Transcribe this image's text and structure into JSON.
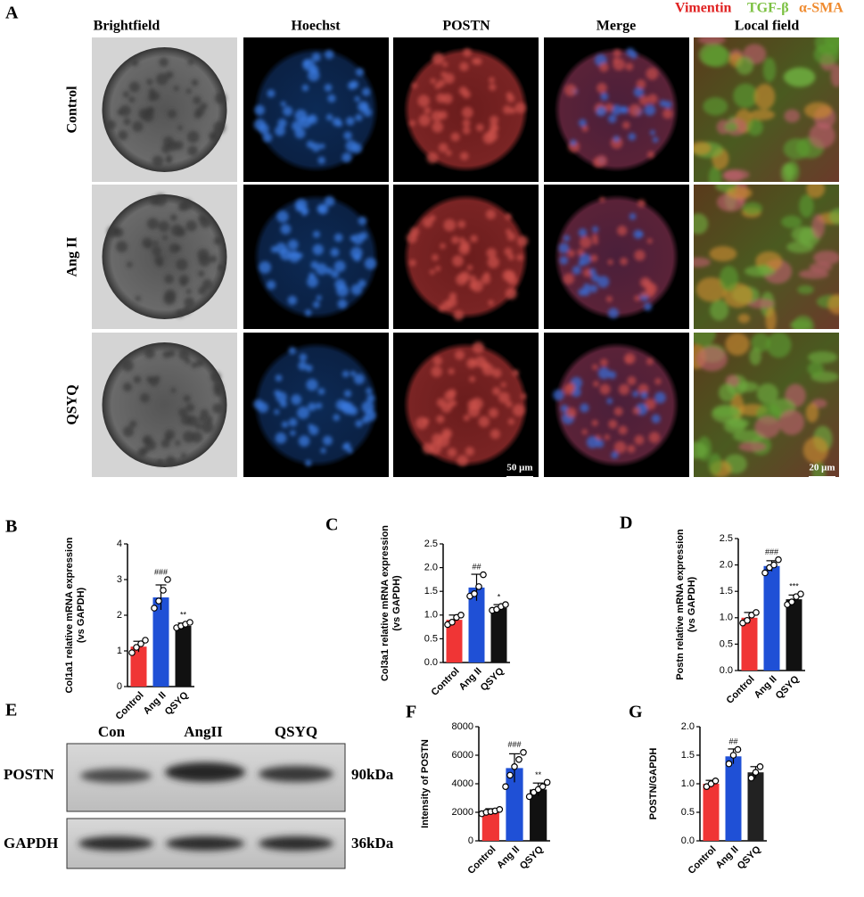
{
  "panel_labels": [
    "A",
    "B",
    "C",
    "D",
    "E",
    "F",
    "G"
  ],
  "panel_a": {
    "columns": [
      "Brightfield",
      "Hoechst",
      "POSTN",
      "Merge",
      "Local field"
    ],
    "rows": [
      "Control",
      "Ang II",
      "QSYQ"
    ],
    "legend": [
      {
        "text": "Vimentin",
        "color": "#e02222"
      },
      {
        "text": "TGF-β",
        "color": "#7cc142"
      },
      {
        "text": "α-SMA",
        "color": "#ef8a2e"
      }
    ],
    "scale_bars": [
      "50 μm",
      "20 μm"
    ]
  },
  "panel_e": {
    "lanes": [
      "Con",
      "AngII",
      "QSYQ"
    ],
    "rows": [
      "POSTN",
      "GAPDH"
    ],
    "sizes": [
      "90kDa",
      "36kDa"
    ]
  },
  "chart_data": [
    {
      "type": "bar",
      "ylabel": [
        "Col1a1 relative mRNA expression",
        "(vs GAPDH)"
      ],
      "categories": [
        "Control",
        "Ang II",
        "QSYQ"
      ],
      "colors": [
        "#f03535",
        "#1f50d6",
        "#111111"
      ],
      "values": [
        1.12,
        2.5,
        1.7
      ],
      "errors": [
        0.15,
        0.35,
        0.08
      ],
      "points": [
        [
          0.95,
          1.1,
          1.2,
          1.3
        ],
        [
          2.2,
          2.4,
          2.7,
          3.0
        ],
        [
          1.65,
          1.7,
          1.75,
          1.8
        ]
      ],
      "annotations": [
        null,
        "###",
        "**"
      ],
      "ylim": [
        0,
        4
      ],
      "yticks": [
        0,
        1,
        2,
        3,
        4
      ]
    },
    {
      "type": "bar",
      "ylabel": [
        "Col3a1 relative mRNA expression",
        "(vs GAPDH)"
      ],
      "categories": [
        "Control",
        "Ang II",
        "QSYQ"
      ],
      "colors": [
        "#f03535",
        "#1f50d6",
        "#111111"
      ],
      "values": [
        0.9,
        1.58,
        1.15
      ],
      "errors": [
        0.1,
        0.28,
        0.07
      ],
      "points": [
        [
          0.8,
          0.85,
          0.95,
          1.0
        ],
        [
          1.4,
          1.45,
          1.6,
          1.85
        ],
        [
          1.1,
          1.12,
          1.18,
          1.22
        ]
      ],
      "annotations": [
        null,
        "##",
        "*"
      ],
      "ylim": [
        0,
        2.5
      ],
      "yticks": [
        {
          "value": 0,
          "label": "0.0"
        },
        0.5,
        {
          "value": 1,
          "label": "1.0"
        },
        1.5,
        {
          "value": 2,
          "label": "2.0"
        },
        2.5
      ]
    },
    {
      "type": "bar",
      "ylabel": [
        "Postn relative mRNA expression",
        "(vs GAPDH)"
      ],
      "categories": [
        "Control",
        "Ang II",
        "QSYQ"
      ],
      "colors": [
        "#f03535",
        "#1f50d6",
        "#111111"
      ],
      "values": [
        1.0,
        1.98,
        1.35
      ],
      "errors": [
        0.1,
        0.1,
        0.08
      ],
      "points": [
        [
          0.9,
          0.95,
          1.05,
          1.1
        ],
        [
          1.85,
          1.95,
          2.0,
          2.1
        ],
        [
          1.25,
          1.3,
          1.4,
          1.45
        ]
      ],
      "annotations": [
        null,
        "###",
        "***"
      ],
      "ylim": [
        0,
        2.5
      ],
      "yticks": [
        {
          "value": 0,
          "label": "0.0"
        },
        0.5,
        {
          "value": 1,
          "label": "1.0"
        },
        1.5,
        {
          "value": 2,
          "label": "2.0"
        },
        2.5
      ]
    },
    {
      "type": "bar",
      "ylabel": [
        "Intensity of POSTN"
      ],
      "categories": [
        "Control",
        "Ang II",
        "QSYQ"
      ],
      "colors": [
        "#f03535",
        "#1f50d6",
        "#111111"
      ],
      "values": [
        2050,
        5100,
        3600
      ],
      "errors": [
        200,
        1000,
        450
      ],
      "points": [
        [
          1900,
          2000,
          2050,
          2100,
          2200
        ],
        [
          3800,
          4600,
          5200,
          5700,
          6200
        ],
        [
          3100,
          3400,
          3600,
          3800,
          4100
        ]
      ],
      "annotations": [
        null,
        "###",
        "**"
      ],
      "ylim": [
        0,
        8000
      ],
      "yticks": [
        0,
        2000,
        4000,
        6000,
        8000
      ]
    },
    {
      "type": "bar",
      "ylabel": [
        "POSTN/GAPDH"
      ],
      "categories": [
        "Control",
        "Ang II",
        "QSYQ"
      ],
      "colors": [
        "#f03535",
        "#1f50d6",
        "#222222"
      ],
      "values": [
        1.0,
        1.48,
        1.2
      ],
      "errors": [
        0.06,
        0.13,
        0.1
      ],
      "points": [
        [
          0.95,
          1.0,
          1.05
        ],
        [
          1.35,
          1.5,
          1.6
        ],
        [
          1.1,
          1.2,
          1.3
        ]
      ],
      "annotations": [
        null,
        "##",
        null
      ],
      "ylim": [
        0,
        2.0
      ],
      "yticks": [
        {
          "value": 0,
          "label": "0.0"
        },
        0.5,
        {
          "value": 1,
          "label": "1.0"
        },
        1.5,
        {
          "value": 2,
          "label": "2.0"
        }
      ]
    }
  ]
}
